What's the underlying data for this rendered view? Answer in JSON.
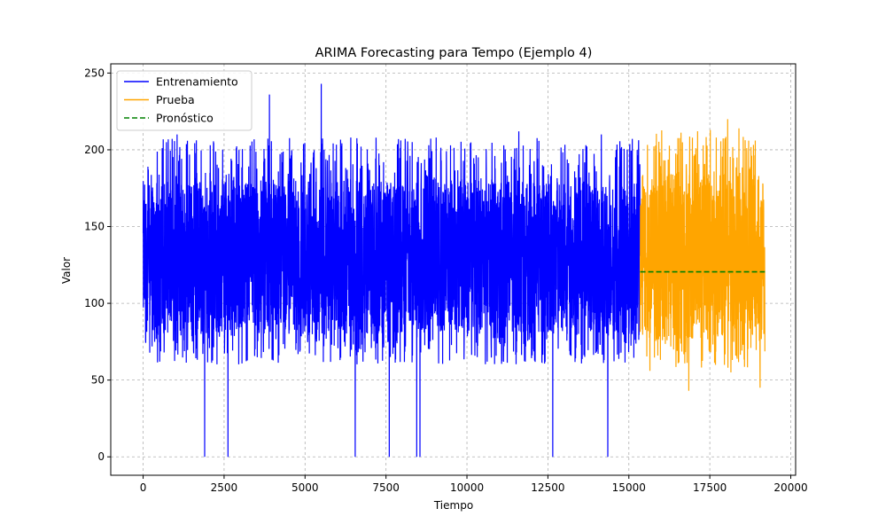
{
  "chart_data": {
    "type": "line",
    "title": "ARIMA Forecasting para Tempo (Ejemplo 4)",
    "xlabel": "Tiempo",
    "ylabel": "Valor",
    "xlim": [
      -1000,
      20150
    ],
    "ylim": [
      -12,
      256
    ],
    "xticks": [
      0,
      2500,
      5000,
      7500,
      10000,
      12500,
      15000,
      17500,
      20000
    ],
    "xtick_labels": [
      "0",
      "2500",
      "5000",
      "7500",
      "10000",
      "12500",
      "15000",
      "17500",
      "20000"
    ],
    "yticks": [
      0,
      50,
      100,
      150,
      200,
      250
    ],
    "ytick_labels": [
      "0",
      "50",
      "100",
      "150",
      "200",
      "250"
    ],
    "grid": true,
    "legend_position": "top-left",
    "series": [
      {
        "name": "Entrenamiento",
        "color": "#0000ff",
        "style": "solid",
        "x_range": [
          0,
          15350
        ],
        "typical_range": [
          80,
          180
        ],
        "peaks": [
          {
            "x": 1050,
            "y": 210
          },
          {
            "x": 3900,
            "y": 236
          },
          {
            "x": 5500,
            "y": 243
          },
          {
            "x": 9050,
            "y": 208
          },
          {
            "x": 11600,
            "y": 212
          },
          {
            "x": 14150,
            "y": 210
          }
        ],
        "dips": [
          {
            "x": 1900,
            "y": 0
          },
          {
            "x": 2620,
            "y": 0
          },
          {
            "x": 6550,
            "y": 0
          },
          {
            "x": 7600,
            "y": 0
          },
          {
            "x": 8450,
            "y": 0
          },
          {
            "x": 8550,
            "y": 0
          },
          {
            "x": 12650,
            "y": 0
          },
          {
            "x": 14350,
            "y": 0
          }
        ]
      },
      {
        "name": "Prueba",
        "color": "#ffa500",
        "style": "solid",
        "x_range": [
          15350,
          19200
        ],
        "typical_range": [
          78,
          185
        ],
        "peaks": [
          {
            "x": 17700,
            "y": 208
          },
          {
            "x": 18050,
            "y": 220
          },
          {
            "x": 18400,
            "y": 214
          },
          {
            "x": 18700,
            "y": 206
          }
        ],
        "dips": [
          {
            "x": 16850,
            "y": 43
          },
          {
            "x": 19050,
            "y": 45
          },
          {
            "x": 18150,
            "y": 55
          },
          {
            "x": 15650,
            "y": 56
          }
        ]
      },
      {
        "name": "Pronóstico",
        "color": "#008000",
        "style": "dashed",
        "x": [
          15350,
          19200
        ],
        "y": [
          120.5,
          120.5
        ]
      }
    ]
  }
}
